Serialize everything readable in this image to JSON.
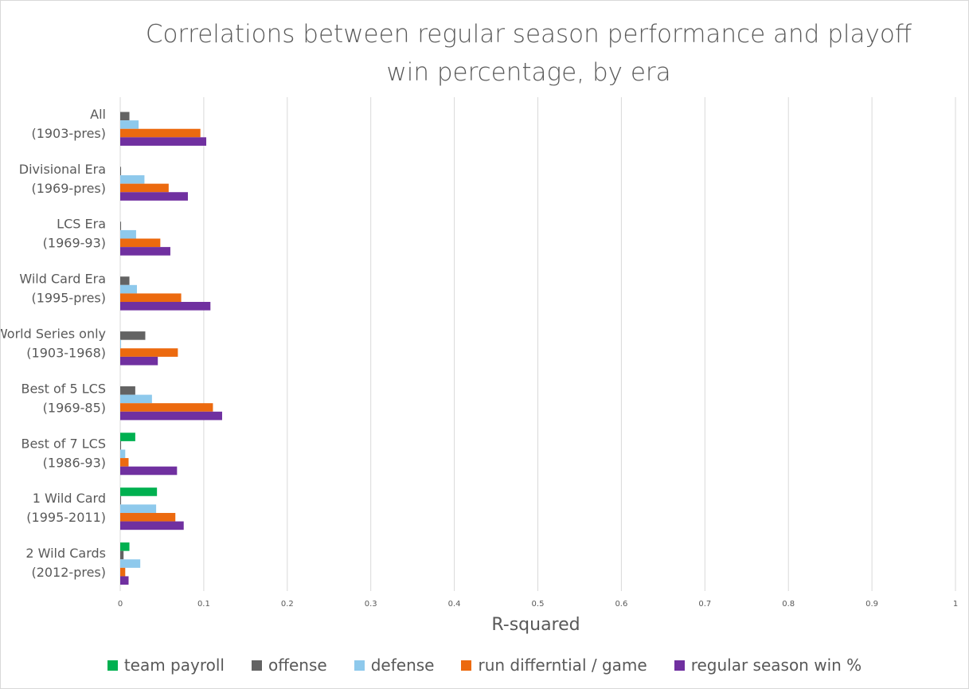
{
  "chart_data": {
    "type": "hbar",
    "title": "Correlations between regular season performance and playoff win percentage, by era",
    "x_label": "R-squared",
    "categories": [
      [
        "All",
        "(1903-pres)"
      ],
      [
        "Divisional Era",
        "(1969-pres)"
      ],
      [
        "LCS Era",
        "(1969-93)"
      ],
      [
        "Wild Card Era",
        "(1995-pres)"
      ],
      [
        "World Series only",
        "(1903-1968)"
      ],
      [
        "Best of 5 LCS",
        "(1969-85)"
      ],
      [
        "Best of 7 LCS",
        "(1986-93)"
      ],
      [
        "1 Wild Card",
        "(1995-2011)"
      ],
      [
        "2 Wild Cards",
        "(2012-pres)"
      ]
    ],
    "series": [
      {
        "name": "team payroll",
        "color": "#00b050",
        "values": [
          null,
          null,
          null,
          null,
          null,
          null,
          0.018,
          0.044,
          0.011
        ]
      },
      {
        "name": "offense",
        "color": "#636363",
        "values": [
          0.011,
          0.001,
          0.001,
          0.011,
          0.03,
          0.018,
          0.001,
          0.001,
          0.004
        ]
      },
      {
        "name": "defense",
        "color": "#8ec9ec",
        "values": [
          0.022,
          0.029,
          0.019,
          0.02,
          0.001,
          0.038,
          0.006,
          0.043,
          0.024
        ]
      },
      {
        "name": "run differntial / game",
        "color": "#ec6a0f",
        "values": [
          0.096,
          0.058,
          0.048,
          0.073,
          0.069,
          0.111,
          0.01,
          0.066,
          0.006
        ]
      },
      {
        "name": "regular season win %",
        "color": "#7030a0",
        "values": [
          0.103,
          0.081,
          0.06,
          0.108,
          0.045,
          0.122,
          0.068,
          0.076,
          0.01
        ]
      }
    ],
    "xlim": [
      0,
      1
    ],
    "xticks": [
      0,
      0.1,
      0.2,
      0.3,
      0.4,
      0.5,
      0.6,
      0.7,
      0.8,
      0.9,
      1
    ],
    "grid": true
  }
}
